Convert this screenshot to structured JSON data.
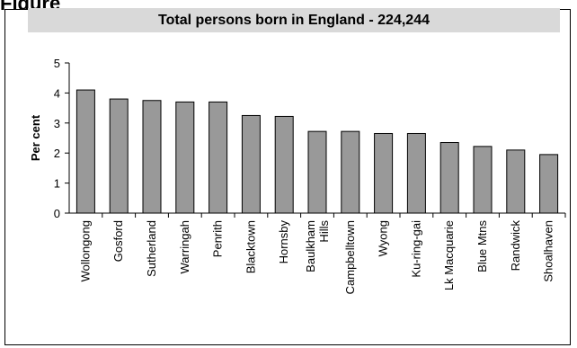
{
  "figure_label": "Figure",
  "chart_data": {
    "type": "bar",
    "title": "Total persons born in England - 224,244",
    "xlabel": "",
    "ylabel": "Per cent",
    "ylim": [
      0,
      5
    ],
    "yticks": [
      "0",
      "1",
      "2",
      "3",
      "4",
      "5"
    ],
    "grid": false,
    "bar_color": "#999999",
    "categories": [
      [
        "Wollongong"
      ],
      [
        "Gosford"
      ],
      [
        "Sutherland"
      ],
      [
        "Warringah"
      ],
      [
        "Penrith"
      ],
      [
        "Blacktown"
      ],
      [
        "Hornsby"
      ],
      [
        "Baulkham",
        "Hills"
      ],
      [
        "Campbelltown"
      ],
      [
        "Wyong"
      ],
      [
        "Ku-ring-gai"
      ],
      [
        "Lk Macquarie"
      ],
      [
        "Blue Mtns"
      ],
      [
        "Randwick"
      ],
      [
        "Shoalhaven"
      ]
    ],
    "values": [
      4.1,
      3.8,
      3.75,
      3.7,
      3.7,
      3.25,
      3.22,
      2.72,
      2.72,
      2.65,
      2.65,
      2.35,
      2.22,
      2.1,
      1.95
    ]
  }
}
